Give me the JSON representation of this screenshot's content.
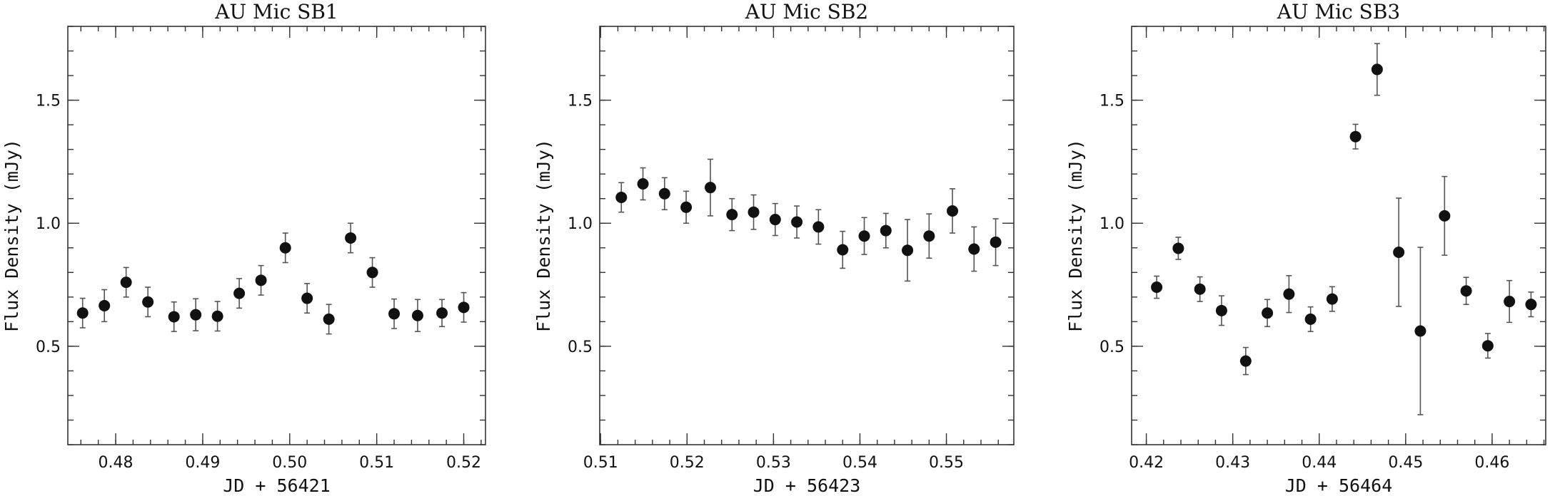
{
  "chart_data": [
    {
      "type": "scatter",
      "title": "AU Mic SB1",
      "xlabel": "JD + 56421",
      "ylabel": "Flux Density (mJy)",
      "xlim": [
        0.4745,
        0.5225
      ],
      "ylim": [
        0.1,
        1.8
      ],
      "xticks": [
        0.48,
        0.49,
        0.5,
        0.51,
        0.52
      ],
      "xtick_labels": [
        "0.48",
        "0.49",
        "0.50",
        "0.51",
        "0.52"
      ],
      "yticks": [
        0.5,
        1.0,
        1.5
      ],
      "ytick_labels": [
        "0.5",
        "1.0",
        "1.5"
      ],
      "grid": false,
      "points": [
        {
          "x": 0.4762,
          "y": 0.635,
          "err": 0.06
        },
        {
          "x": 0.4787,
          "y": 0.665,
          "err": 0.065
        },
        {
          "x": 0.4812,
          "y": 0.76,
          "err": 0.06
        },
        {
          "x": 0.4837,
          "y": 0.68,
          "err": 0.06
        },
        {
          "x": 0.4867,
          "y": 0.62,
          "err": 0.06
        },
        {
          "x": 0.4892,
          "y": 0.628,
          "err": 0.065
        },
        {
          "x": 0.4917,
          "y": 0.622,
          "err": 0.06
        },
        {
          "x": 0.4942,
          "y": 0.715,
          "err": 0.06
        },
        {
          "x": 0.4967,
          "y": 0.768,
          "err": 0.06
        },
        {
          "x": 0.4995,
          "y": 0.9,
          "err": 0.06
        },
        {
          "x": 0.502,
          "y": 0.695,
          "err": 0.06
        },
        {
          "x": 0.5045,
          "y": 0.61,
          "err": 0.06
        },
        {
          "x": 0.507,
          "y": 0.94,
          "err": 0.06
        },
        {
          "x": 0.5095,
          "y": 0.8,
          "err": 0.06
        },
        {
          "x": 0.512,
          "y": 0.632,
          "err": 0.06
        },
        {
          "x": 0.5147,
          "y": 0.625,
          "err": 0.065
        },
        {
          "x": 0.5175,
          "y": 0.635,
          "err": 0.055
        },
        {
          "x": 0.52,
          "y": 0.658,
          "err": 0.06
        }
      ]
    },
    {
      "type": "scatter",
      "title": "AU Mic SB2",
      "xlabel": "JD + 56423",
      "ylabel": "Flux Density (mJy)",
      "xlim": [
        0.5099,
        0.5578
      ],
      "ylim": [
        0.1,
        1.8
      ],
      "xticks": [
        0.51,
        0.52,
        0.53,
        0.54,
        0.55
      ],
      "xtick_labels": [
        "0.51",
        "0.52",
        "0.53",
        "0.54",
        "0.55"
      ],
      "yticks": [
        0.5,
        1.0,
        1.5
      ],
      "ytick_labels": [
        "0.5",
        "1.0",
        "1.5"
      ],
      "grid": false,
      "points": [
        {
          "x": 0.5124,
          "y": 1.105,
          "err": 0.06
        },
        {
          "x": 0.5149,
          "y": 1.16,
          "err": 0.065
        },
        {
          "x": 0.5174,
          "y": 1.12,
          "err": 0.065
        },
        {
          "x": 0.5199,
          "y": 1.065,
          "err": 0.065
        },
        {
          "x": 0.5227,
          "y": 1.145,
          "err": 0.115
        },
        {
          "x": 0.5252,
          "y": 1.035,
          "err": 0.065
        },
        {
          "x": 0.5277,
          "y": 1.045,
          "err": 0.07
        },
        {
          "x": 0.5302,
          "y": 1.015,
          "err": 0.065
        },
        {
          "x": 0.5327,
          "y": 1.005,
          "err": 0.065
        },
        {
          "x": 0.5352,
          "y": 0.985,
          "err": 0.07
        },
        {
          "x": 0.538,
          "y": 0.892,
          "err": 0.075
        },
        {
          "x": 0.5405,
          "y": 0.948,
          "err": 0.075
        },
        {
          "x": 0.543,
          "y": 0.97,
          "err": 0.07
        },
        {
          "x": 0.5455,
          "y": 0.89,
          "err": 0.125
        },
        {
          "x": 0.548,
          "y": 0.948,
          "err": 0.09
        },
        {
          "x": 0.5507,
          "y": 1.05,
          "err": 0.09
        },
        {
          "x": 0.5532,
          "y": 0.895,
          "err": 0.09
        },
        {
          "x": 0.5557,
          "y": 0.923,
          "err": 0.095
        }
      ]
    },
    {
      "type": "scatter",
      "title": "AU Mic SB3",
      "xlabel": "JD + 56464",
      "ylabel": "Flux Density (mJy)",
      "xlim": [
        0.4183,
        0.4662
      ],
      "ylim": [
        0.1,
        1.8
      ],
      "xticks": [
        0.42,
        0.43,
        0.44,
        0.45,
        0.46
      ],
      "xtick_labels": [
        "0.42",
        "0.43",
        "0.44",
        "0.45",
        "0.46"
      ],
      "yticks": [
        0.5,
        1.0,
        1.5
      ],
      "ytick_labels": [
        "0.5",
        "1.0",
        "1.5"
      ],
      "grid": false,
      "points": [
        {
          "x": 0.4212,
          "y": 0.74,
          "err": 0.045
        },
        {
          "x": 0.4237,
          "y": 0.898,
          "err": 0.045
        },
        {
          "x": 0.4262,
          "y": 0.732,
          "err": 0.05
        },
        {
          "x": 0.4287,
          "y": 0.645,
          "err": 0.06
        },
        {
          "x": 0.4315,
          "y": 0.44,
          "err": 0.055
        },
        {
          "x": 0.434,
          "y": 0.635,
          "err": 0.055
        },
        {
          "x": 0.4365,
          "y": 0.712,
          "err": 0.075
        },
        {
          "x": 0.439,
          "y": 0.61,
          "err": 0.05
        },
        {
          "x": 0.4415,
          "y": 0.692,
          "err": 0.05
        },
        {
          "x": 0.4442,
          "y": 1.352,
          "err": 0.05
        },
        {
          "x": 0.4467,
          "y": 1.625,
          "err": 0.105
        },
        {
          "x": 0.4492,
          "y": 0.882,
          "err": 0.22
        },
        {
          "x": 0.4517,
          "y": 0.562,
          "err": 0.34
        },
        {
          "x": 0.4545,
          "y": 1.03,
          "err": 0.16
        },
        {
          "x": 0.457,
          "y": 0.725,
          "err": 0.055
        },
        {
          "x": 0.4595,
          "y": 0.502,
          "err": 0.05
        },
        {
          "x": 0.462,
          "y": 0.682,
          "err": 0.085
        },
        {
          "x": 0.4645,
          "y": 0.67,
          "err": 0.05
        }
      ]
    }
  ]
}
